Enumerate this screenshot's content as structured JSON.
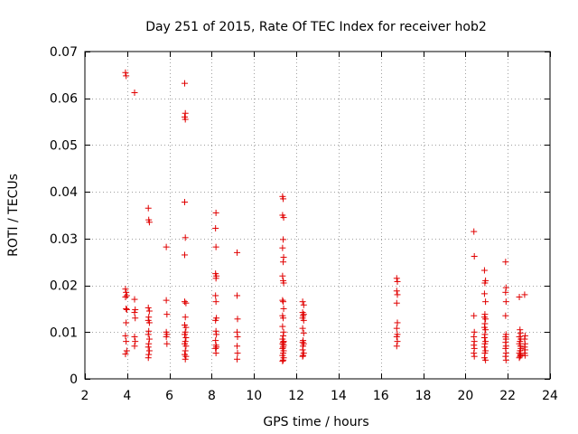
{
  "chart_data": {
    "type": "scatter",
    "title": "Day 251 of 2015, Rate Of TEC Index for receiver hob2",
    "xlabel": "GPS time / hours",
    "ylabel": "ROTI / TECUs",
    "xlim": [
      2,
      24
    ],
    "ylim": [
      0,
      0.07
    ],
    "x_ticks": [
      2,
      4,
      6,
      8,
      10,
      12,
      14,
      16,
      18,
      20,
      22,
      24
    ],
    "x_tick_labels": [
      "2",
      "4",
      "6",
      "8",
      "10",
      "12",
      "14",
      "16",
      "18",
      "20",
      "22",
      "24"
    ],
    "y_ticks": [
      0,
      0.01,
      0.02,
      0.03,
      0.04,
      0.05,
      0.06,
      0.07
    ],
    "y_tick_labels": [
      "0",
      "0.01",
      "0.02",
      "0.03",
      "0.04",
      "0.05",
      "0.06",
      "0.07"
    ],
    "grid": true,
    "marker": "+",
    "marker_color": "#e00000",
    "series": [
      {
        "name": "hob2",
        "points": [
          [
            3.92,
            0.0655
          ],
          [
            3.95,
            0.0648
          ],
          [
            4.35,
            0.0612
          ],
          [
            3.92,
            0.0192
          ],
          [
            3.95,
            0.0185
          ],
          [
            3.98,
            0.0178
          ],
          [
            3.92,
            0.0175
          ],
          [
            3.95,
            0.015
          ],
          [
            3.98,
            0.0148
          ],
          [
            3.95,
            0.012
          ],
          [
            3.92,
            0.0092
          ],
          [
            3.95,
            0.008
          ],
          [
            3.98,
            0.006
          ],
          [
            3.92,
            0.0053
          ],
          [
            4.35,
            0.017
          ],
          [
            4.38,
            0.0148
          ],
          [
            4.35,
            0.0142
          ],
          [
            4.38,
            0.013
          ],
          [
            4.35,
            0.009
          ],
          [
            4.38,
            0.008
          ],
          [
            4.35,
            0.007
          ],
          [
            5.0,
            0.0365
          ],
          [
            5.02,
            0.034
          ],
          [
            5.05,
            0.0335
          ],
          [
            5.0,
            0.0152
          ],
          [
            5.05,
            0.0145
          ],
          [
            5.02,
            0.0132
          ],
          [
            5.0,
            0.0125
          ],
          [
            5.05,
            0.012
          ],
          [
            5.02,
            0.0102
          ],
          [
            5.0,
            0.0095
          ],
          [
            5.05,
            0.0085
          ],
          [
            5.02,
            0.0075
          ],
          [
            5.0,
            0.0068
          ],
          [
            5.05,
            0.006
          ],
          [
            5.02,
            0.0052
          ],
          [
            5.0,
            0.0045
          ],
          [
            5.85,
            0.0282
          ],
          [
            5.85,
            0.0168
          ],
          [
            5.88,
            0.0138
          ],
          [
            5.85,
            0.01
          ],
          [
            5.88,
            0.0095
          ],
          [
            5.85,
            0.009
          ],
          [
            5.88,
            0.0075
          ],
          [
            6.72,
            0.0632
          ],
          [
            6.75,
            0.0568
          ],
          [
            6.72,
            0.056
          ],
          [
            6.75,
            0.0555
          ],
          [
            6.72,
            0.0378
          ],
          [
            6.75,
            0.0302
          ],
          [
            6.72,
            0.0265
          ],
          [
            6.72,
            0.0165
          ],
          [
            6.78,
            0.0162
          ],
          [
            6.75,
            0.0132
          ],
          [
            6.72,
            0.0115
          ],
          [
            6.78,
            0.011
          ],
          [
            6.75,
            0.01
          ],
          [
            6.72,
            0.0095
          ],
          [
            6.78,
            0.0088
          ],
          [
            6.75,
            0.008
          ],
          [
            6.72,
            0.0075
          ],
          [
            6.78,
            0.007
          ],
          [
            6.75,
            0.006
          ],
          [
            6.72,
            0.0052
          ],
          [
            6.78,
            0.0048
          ],
          [
            6.75,
            0.0042
          ],
          [
            8.2,
            0.0355
          ],
          [
            8.18,
            0.0322
          ],
          [
            8.2,
            0.0282
          ],
          [
            8.18,
            0.0225
          ],
          [
            8.22,
            0.022
          ],
          [
            8.2,
            0.0215
          ],
          [
            8.18,
            0.0178
          ],
          [
            8.2,
            0.0165
          ],
          [
            8.22,
            0.013
          ],
          [
            8.18,
            0.0125
          ],
          [
            8.2,
            0.0102
          ],
          [
            8.22,
            0.0095
          ],
          [
            8.18,
            0.0082
          ],
          [
            8.2,
            0.0072
          ],
          [
            8.22,
            0.0068
          ],
          [
            8.18,
            0.0065
          ],
          [
            8.2,
            0.0055
          ],
          [
            9.2,
            0.027
          ],
          [
            9.2,
            0.0178
          ],
          [
            9.22,
            0.0128
          ],
          [
            9.2,
            0.01
          ],
          [
            9.22,
            0.009
          ],
          [
            9.2,
            0.007
          ],
          [
            9.22,
            0.0055
          ],
          [
            9.2,
            0.0042
          ],
          [
            11.35,
            0.039
          ],
          [
            11.38,
            0.0385
          ],
          [
            11.35,
            0.035
          ],
          [
            11.4,
            0.0345
          ],
          [
            11.38,
            0.0298
          ],
          [
            11.35,
            0.028
          ],
          [
            11.4,
            0.026
          ],
          [
            11.38,
            0.025
          ],
          [
            11.35,
            0.022
          ],
          [
            11.38,
            0.021
          ],
          [
            11.4,
            0.0205
          ],
          [
            11.35,
            0.0168
          ],
          [
            11.38,
            0.0165
          ],
          [
            11.4,
            0.015
          ],
          [
            11.35,
            0.0135
          ],
          [
            11.38,
            0.013
          ],
          [
            11.35,
            0.0112
          ],
          [
            11.4,
            0.01
          ],
          [
            11.38,
            0.0092
          ],
          [
            11.35,
            0.0085
          ],
          [
            11.4,
            0.008
          ],
          [
            11.38,
            0.0078
          ],
          [
            11.35,
            0.0075
          ],
          [
            11.4,
            0.0072
          ],
          [
            11.38,
            0.0068
          ],
          [
            11.35,
            0.0065
          ],
          [
            11.4,
            0.006
          ],
          [
            11.38,
            0.0055
          ],
          [
            11.35,
            0.005
          ],
          [
            11.4,
            0.0045
          ],
          [
            11.38,
            0.004
          ],
          [
            11.35,
            0.0038
          ],
          [
            12.3,
            0.0165
          ],
          [
            12.35,
            0.0158
          ],
          [
            12.3,
            0.0142
          ],
          [
            12.35,
            0.0138
          ],
          [
            12.32,
            0.0135
          ],
          [
            12.3,
            0.013
          ],
          [
            12.35,
            0.0125
          ],
          [
            12.3,
            0.0108
          ],
          [
            12.35,
            0.0098
          ],
          [
            12.32,
            0.0082
          ],
          [
            12.3,
            0.0078
          ],
          [
            12.35,
            0.0075
          ],
          [
            12.32,
            0.007
          ],
          [
            12.3,
            0.0062
          ],
          [
            12.35,
            0.0055
          ],
          [
            12.32,
            0.005
          ],
          [
            12.3,
            0.0048
          ],
          [
            16.75,
            0.0215
          ],
          [
            16.78,
            0.0208
          ],
          [
            16.75,
            0.0188
          ],
          [
            16.78,
            0.018
          ],
          [
            16.75,
            0.0162
          ],
          [
            16.78,
            0.012
          ],
          [
            16.75,
            0.0108
          ],
          [
            16.78,
            0.0095
          ],
          [
            16.75,
            0.009
          ],
          [
            16.78,
            0.008
          ],
          [
            16.75,
            0.007
          ],
          [
            20.4,
            0.0315
          ],
          [
            20.42,
            0.0262
          ],
          [
            20.4,
            0.0135
          ],
          [
            20.42,
            0.01
          ],
          [
            20.4,
            0.009
          ],
          [
            20.42,
            0.008
          ],
          [
            20.4,
            0.0072
          ],
          [
            20.42,
            0.0065
          ],
          [
            20.4,
            0.0055
          ],
          [
            20.42,
            0.0048
          ],
          [
            20.9,
            0.0232
          ],
          [
            20.95,
            0.021
          ],
          [
            20.92,
            0.0205
          ],
          [
            20.9,
            0.0182
          ],
          [
            20.95,
            0.0165
          ],
          [
            20.92,
            0.0138
          ],
          [
            20.9,
            0.0132
          ],
          [
            20.95,
            0.0128
          ],
          [
            20.92,
            0.0118
          ],
          [
            20.9,
            0.011
          ],
          [
            20.95,
            0.0105
          ],
          [
            20.92,
            0.0095
          ],
          [
            20.9,
            0.0088
          ],
          [
            20.95,
            0.008
          ],
          [
            20.92,
            0.0075
          ],
          [
            20.9,
            0.0068
          ],
          [
            20.95,
            0.006
          ],
          [
            20.92,
            0.0055
          ],
          [
            20.9,
            0.0045
          ],
          [
            20.95,
            0.004
          ],
          [
            21.9,
            0.025
          ],
          [
            21.92,
            0.0195
          ],
          [
            21.9,
            0.0185
          ],
          [
            21.92,
            0.0165
          ],
          [
            21.9,
            0.0135
          ],
          [
            21.92,
            0.0095
          ],
          [
            21.9,
            0.009
          ],
          [
            21.92,
            0.0085
          ],
          [
            21.9,
            0.0078
          ],
          [
            21.92,
            0.007
          ],
          [
            21.9,
            0.0065
          ],
          [
            21.92,
            0.0055
          ],
          [
            21.9,
            0.0048
          ],
          [
            21.92,
            0.004
          ],
          [
            22.55,
            0.0175
          ],
          [
            22.58,
            0.0105
          ],
          [
            22.6,
            0.0098
          ],
          [
            22.55,
            0.009
          ],
          [
            22.62,
            0.0085
          ],
          [
            22.58,
            0.008
          ],
          [
            22.55,
            0.0075
          ],
          [
            22.6,
            0.007
          ],
          [
            22.62,
            0.0065
          ],
          [
            22.58,
            0.006
          ],
          [
            22.55,
            0.0055
          ],
          [
            22.6,
            0.0052
          ],
          [
            22.62,
            0.005
          ],
          [
            22.58,
            0.0048
          ],
          [
            22.55,
            0.0045
          ],
          [
            22.8,
            0.018
          ],
          [
            22.82,
            0.0092
          ],
          [
            22.8,
            0.0085
          ],
          [
            22.82,
            0.0075
          ],
          [
            22.8,
            0.0068
          ],
          [
            22.82,
            0.0062
          ],
          [
            22.8,
            0.0055
          ],
          [
            22.82,
            0.005
          ]
        ]
      }
    ]
  }
}
